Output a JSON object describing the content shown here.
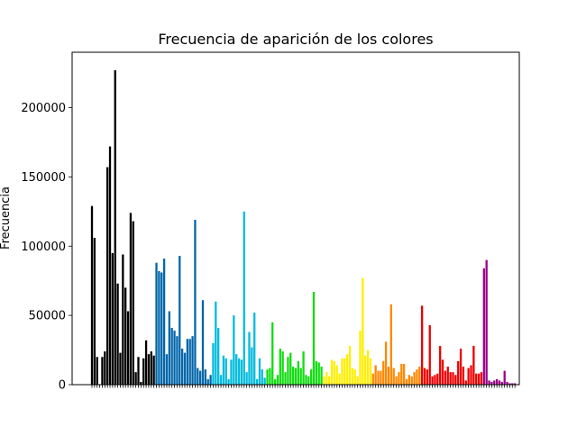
{
  "chart_data": {
    "type": "bar",
    "title": "Frecuencia de aparición de los colores",
    "xlabel": "",
    "ylabel": "Frecuencia",
    "ylim": [
      0,
      240000
    ],
    "yticks": [
      0,
      50000,
      100000,
      150000,
      200000
    ],
    "ytick_labels": [
      "0",
      "50000",
      "100000",
      "150000",
      "200000"
    ],
    "grid": false,
    "legend": "none",
    "xtick_labels_note": "dense rotated category labels, illegible at this resolution",
    "groups": [
      {
        "color": "#000000",
        "values": [
          129000,
          106000,
          20000,
          0,
          20000,
          24000,
          157000,
          172000,
          95000,
          227000,
          73000,
          23000,
          94000,
          70000,
          53000,
          124000,
          118000,
          9000,
          20000,
          2000,
          19000,
          32000,
          22000,
          24000,
          21000
        ]
      },
      {
        "color": "#0066aa",
        "values": [
          88000,
          82000,
          81000,
          91000,
          22000,
          53000,
          41000,
          39000,
          35000,
          93000,
          26000,
          23000,
          33000,
          33000,
          35000,
          119000,
          12000,
          10000,
          61000,
          11000,
          4000,
          7000
        ]
      },
      {
        "color": "#00bbdd",
        "values": [
          30000,
          60000,
          41000,
          7000,
          21000,
          19000,
          4000,
          18000,
          50000,
          22000,
          19000,
          18000,
          125000,
          9000,
          38000,
          27000,
          52000,
          4000,
          19000,
          11000,
          5000
        ]
      },
      {
        "color": "#11dd11",
        "values": [
          11000,
          12000,
          45000,
          4000,
          7000,
          26000,
          24000,
          9000,
          20000,
          23000,
          13000,
          12000,
          17000,
          12000,
          24000,
          7000,
          6000,
          11000,
          67000,
          17000,
          16000,
          13000
        ]
      },
      {
        "color": "#ffee00",
        "values": [
          6000,
          9000,
          6000,
          18000,
          17000,
          14000,
          8000,
          19000,
          19000,
          22000,
          28000,
          12000,
          11000,
          6000,
          39000,
          77000,
          21000,
          25000,
          19000
        ]
      },
      {
        "color": "#ff8800",
        "values": [
          8000,
          14000,
          10000,
          10000,
          17000,
          31000,
          13000,
          58000,
          12000,
          6000,
          9000,
          15000,
          15000,
          4000,
          7000,
          6000,
          9000,
          11000,
          13000
        ]
      },
      {
        "color": "#ee0000",
        "values": [
          57000,
          12000,
          11000,
          43000,
          6000,
          7000,
          8000,
          28000,
          18000,
          10000,
          13000,
          9000,
          9000,
          7000,
          17000,
          26000,
          13000,
          3000,
          12000,
          14000,
          28000,
          8000,
          8000,
          9000
        ]
      },
      {
        "color": "#990088",
        "values": [
          84000,
          90000,
          3000,
          2000,
          3000,
          4000,
          3000,
          2000,
          10000,
          2000,
          1000,
          1000,
          1000
        ]
      }
    ]
  }
}
